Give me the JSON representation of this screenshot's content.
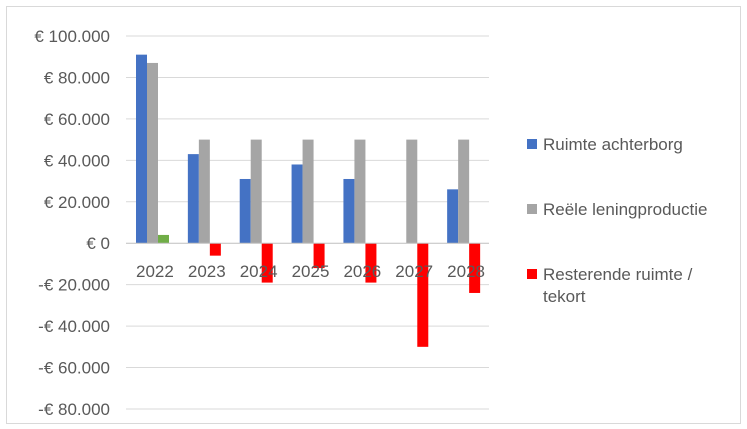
{
  "chart_data": {
    "type": "bar",
    "categories": [
      "2022",
      "2023",
      "2024",
      "2025",
      "2026",
      "2027",
      "2028"
    ],
    "series": [
      {
        "name": "Ruimte achterborg",
        "color": "#4472c4",
        "values": [
          91000,
          43000,
          31000,
          38000,
          31000,
          0,
          26000
        ]
      },
      {
        "name": "Reële leningproductie",
        "color": "#a5a5a5",
        "values": [
          87000,
          50000,
          50000,
          50000,
          50000,
          50000,
          50000
        ]
      },
      {
        "name": "Resterende ruimte / tekort",
        "color": "#ff0000",
        "values": [
          4000,
          -6000,
          -19000,
          -12000,
          -19000,
          -50000,
          -24000
        ]
      }
    ],
    "positive_color": "#70ad47",
    "ylim": [
      -80000,
      100000
    ],
    "yticks": [
      {
        "value": 100000,
        "label": "€ 100.000"
      },
      {
        "value": 80000,
        "label": "€ 80.000"
      },
      {
        "value": 60000,
        "label": "€ 60.000"
      },
      {
        "value": 40000,
        "label": "€ 40.000"
      },
      {
        "value": 20000,
        "label": "€ 20.000"
      },
      {
        "value": 0,
        "label": "€ 0"
      },
      {
        "value": -20000,
        "label": "-€ 20.000"
      },
      {
        "value": -40000,
        "label": "-€ 40.000"
      },
      {
        "value": -60000,
        "label": "-€ 60.000"
      },
      {
        "value": -80000,
        "label": "-€ 80.000"
      }
    ],
    "grid": true,
    "legend_position": "right",
    "title": "",
    "xlabel": "",
    "ylabel": ""
  }
}
